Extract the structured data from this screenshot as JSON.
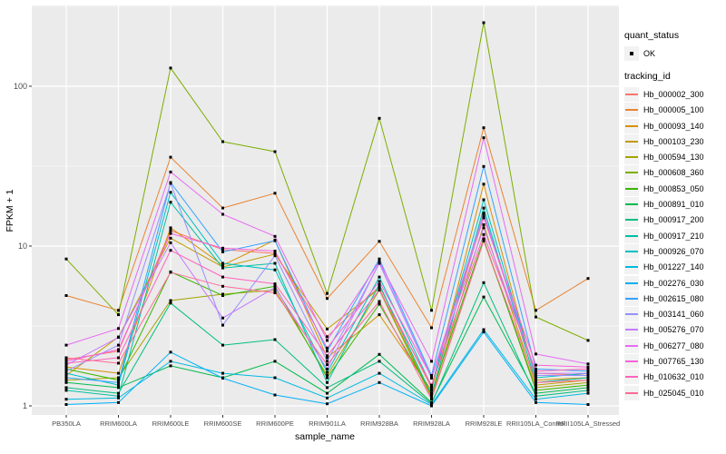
{
  "figure": {
    "background": "#FFFFFF",
    "panel_background": "#EBEBEB",
    "gridline_color": "#FFFFFF",
    "tick_text_color": "#4D4D4D",
    "point_color": "#000000"
  },
  "axes": {
    "x": {
      "title": "sample_name"
    },
    "y": {
      "title": "FPKM + 1"
    }
  },
  "legend": {
    "quant_status": {
      "title": "quant_status",
      "items": [
        {
          "label": "OK",
          "marker": "point",
          "color": "#000000"
        }
      ]
    },
    "tracking_id": {
      "title": "tracking_id"
    }
  },
  "chart_data": {
    "type": "line",
    "title": "",
    "xlabel": "sample_name",
    "ylabel": "FPKM + 1",
    "y_scale": "log10",
    "y_ticks": [
      1,
      10,
      100
    ],
    "y_minor_ticks": [
      3.162,
      31.62,
      316.2
    ],
    "ylim": [
      0.88,
      320
    ],
    "grid": true,
    "legend_position": "right",
    "point_marker": {
      "shape": "filled-square",
      "color": "#000000"
    },
    "x_categories": [
      "PB350LA",
      "RRIM600LA",
      "RRIM600LE",
      "RRIM600SE",
      "RRIM600PE",
      "RRIM901LA",
      "RRIM928BA",
      "RRIM928LA",
      "RRIM928LE",
      "RRII105LA_Control",
      "RRII105LA_Stressed"
    ],
    "series": [
      {
        "name": "Hb_000002_300",
        "color": "#F8766D",
        "values": [
          1.95,
          2.2,
          12.5,
          9.5,
          9.0,
          2.71,
          5.6,
          1.3,
          15.5,
          1.6,
          1.55
        ]
      },
      {
        "name": "Hb_000005_100",
        "color": "#EA8331",
        "values": [
          4.9,
          3.96,
          36,
          17.3,
          21.4,
          4.7,
          10.7,
          3.08,
          55,
          3.96,
          6.27
        ]
      },
      {
        "name": "Hb_000093_140",
        "color": "#D89000",
        "values": [
          1.75,
          1.6,
          13.0,
          7.6,
          10.9,
          2.0,
          3.72,
          1.25,
          24.4,
          1.45,
          1.5
        ]
      },
      {
        "name": "Hb_000103_230",
        "color": "#C09B00",
        "values": [
          1.55,
          2.7,
          11.2,
          7.4,
          8.9,
          3.03,
          5.4,
          1.15,
          13.6,
          1.35,
          1.45
        ]
      },
      {
        "name": "Hb_000594_130",
        "color": "#A3A500",
        "values": [
          1.45,
          1.5,
          4.56,
          5.0,
          5.3,
          1.55,
          5.3,
          1.12,
          10.8,
          1.3,
          1.4
        ]
      },
      {
        "name": "Hb_000608_360",
        "color": "#7CAE00",
        "values": [
          8.3,
          3.72,
          130,
          45,
          39,
          5.05,
          63,
          3.96,
          250,
          3.6,
          2.57
        ]
      },
      {
        "name": "Hb_000853_050",
        "color": "#39B600",
        "values": [
          1.7,
          1.45,
          6.9,
          4.9,
          5.6,
          1.5,
          4.33,
          1.2,
          11.1,
          1.25,
          1.35
        ]
      },
      {
        "name": "Hb_000891_010",
        "color": "#00BB4E",
        "values": [
          1.4,
          1.3,
          1.78,
          1.5,
          1.9,
          1.2,
          2.1,
          1.05,
          4.8,
          1.2,
          1.3
        ]
      },
      {
        "name": "Hb_000917_200",
        "color": "#00BF7D",
        "values": [
          1.3,
          1.2,
          4.4,
          2.4,
          2.6,
          1.3,
          1.9,
          1.03,
          5.9,
          1.15,
          1.25
        ]
      },
      {
        "name": "Hb_000917_210",
        "color": "#00C1A3",
        "values": [
          1.25,
          1.15,
          18.8,
          7.3,
          7.8,
          1.4,
          5.75,
          1.17,
          17.3,
          1.4,
          1.5
        ]
      },
      {
        "name": "Hb_000926_070",
        "color": "#00BFC4",
        "values": [
          1.6,
          1.35,
          21.7,
          7.8,
          7.1,
          1.62,
          6.4,
          1.33,
          19.5,
          1.5,
          1.6
        ]
      },
      {
        "name": "Hb_001227_140",
        "color": "#00BAE0",
        "values": [
          1.1,
          1.12,
          1.9,
          1.6,
          1.5,
          1.12,
          1.6,
          1.02,
          3.0,
          1.1,
          1.2
        ]
      },
      {
        "name": "Hb_002276_030",
        "color": "#00B0F6",
        "values": [
          1.02,
          1.05,
          2.17,
          1.49,
          1.17,
          1.03,
          1.4,
          1.0,
          2.9,
          1.05,
          1.02
        ]
      },
      {
        "name": "Hb_002615_080",
        "color": "#35A2FF",
        "values": [
          1.5,
          1.4,
          25,
          9.2,
          10.8,
          2.2,
          8.3,
          1.55,
          31.5,
          1.7,
          1.65
        ]
      },
      {
        "name": "Hb_003141_060",
        "color": "#9590FF",
        "values": [
          1.65,
          2.4,
          24.7,
          3.2,
          8.7,
          1.9,
          7.8,
          1.49,
          16.1,
          1.55,
          1.55
        ]
      },
      {
        "name": "Hb_005276_070",
        "color": "#C77CFF",
        "values": [
          1.8,
          2.68,
          10.5,
          3.55,
          5.5,
          1.7,
          7.9,
          1.5,
          13.0,
          1.6,
          1.6
        ]
      },
      {
        "name": "Hb_006277_080",
        "color": "#E76BF3",
        "values": [
          2.4,
          3.05,
          29.1,
          15.8,
          11.5,
          2.57,
          8.0,
          1.9,
          47.6,
          2.11,
          1.83
        ]
      },
      {
        "name": "Hb_007765_130",
        "color": "#FA62DB",
        "values": [
          1.9,
          2.25,
          12.0,
          9.7,
          9.3,
          2.3,
          6.0,
          1.52,
          15.0,
          1.8,
          1.75
        ]
      },
      {
        "name": "Hb_010632_010",
        "color": "#FF62BC",
        "values": [
          1.85,
          2.0,
          9.4,
          6.4,
          5.8,
          2.06,
          5.3,
          1.35,
          11.8,
          1.65,
          1.7
        ]
      },
      {
        "name": "Hb_025045_010",
        "color": "#FF6A98",
        "values": [
          2.0,
          1.85,
          6.85,
          5.6,
          5.1,
          1.81,
          4.5,
          1.1,
          10.8,
          1.4,
          1.45
        ]
      }
    ]
  }
}
